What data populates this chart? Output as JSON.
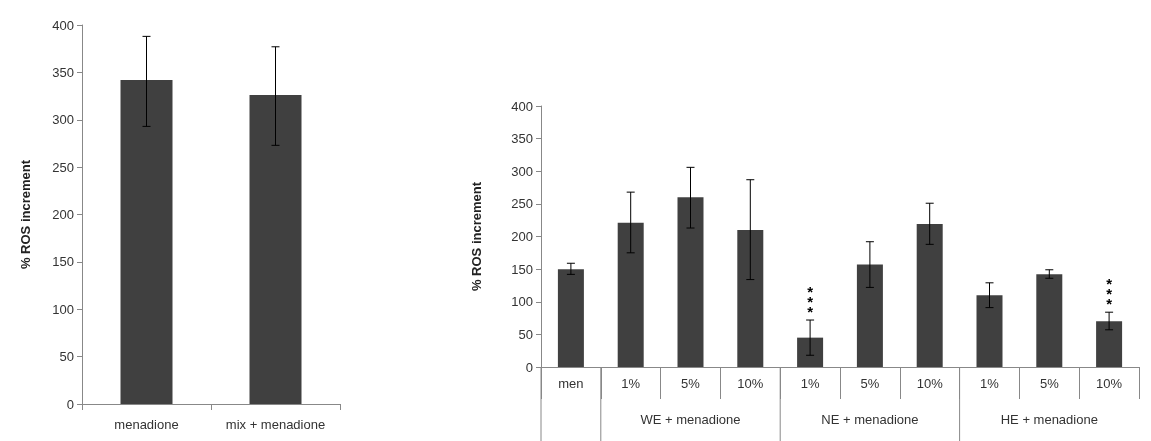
{
  "chart_data": [
    {
      "type": "bar",
      "ylabel": "% ROS increment",
      "categories": [
        "menadione",
        "mix + menadione"
      ],
      "values": [
        342,
        326
      ],
      "color": "#404040",
      "errors": [
        [
          293,
          388
        ],
        [
          273,
          377
        ]
      ],
      "ylim": [
        0,
        400
      ],
      "yticks": [
        0,
        50,
        100,
        150,
        200,
        250,
        300,
        350,
        400
      ],
      "grid": false
    },
    {
      "type": "bar",
      "ylabel": "% ROS increment",
      "categories": [
        "men",
        "1%",
        "5%",
        "10%",
        "1%",
        "5%",
        "10%",
        "1%",
        "5%",
        "10%"
      ],
      "values": [
        150,
        221,
        260,
        210,
        45,
        157,
        219,
        110,
        142,
        70
      ],
      "color": "#404040",
      "errors": [
        [
          142,
          159
        ],
        [
          175,
          268
        ],
        [
          213,
          306
        ],
        [
          134,
          287
        ],
        [
          18,
          72
        ],
        [
          122,
          192
        ],
        [
          188,
          251
        ],
        [
          91,
          129
        ],
        [
          136,
          149
        ],
        [
          57,
          84
        ]
      ],
      "value_labels": [
        null,
        null,
        null,
        null,
        "***",
        null,
        null,
        null,
        null,
        "***"
      ],
      "annotations": [
        "WE + menadione",
        "NE + menadione",
        "HE + menadione"
      ],
      "ylim": [
        0,
        400
      ],
      "yticks": [
        0,
        50,
        100,
        150,
        200,
        250,
        300,
        350,
        400
      ],
      "grid": false
    }
  ]
}
